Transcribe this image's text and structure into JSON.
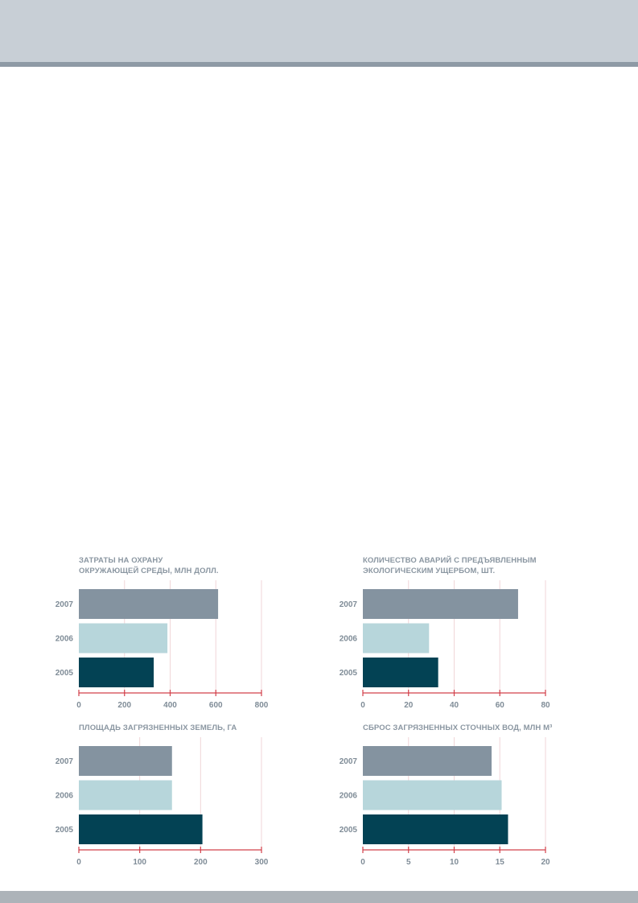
{
  "colors": {
    "year_2007": "#8493a0",
    "year_2006": "#b7d6db",
    "year_2005": "#034254",
    "axis": "#d2404a",
    "grid": "#f0d6d8"
  },
  "chart_data": [
    {
      "type": "bar",
      "orientation": "horizontal",
      "title_lines": [
        "ЗАТРАТЫ НА ОХРАНУ",
        "ОКРУЖАЮЩЕЙ СРЕДЫ, МЛН ДОЛЛ."
      ],
      "categories": [
        "2007",
        "2006",
        "2005"
      ],
      "values": [
        610,
        388,
        328
      ],
      "xlim": [
        0,
        800
      ],
      "xticks": [
        "0",
        "200",
        "400",
        "600",
        "800"
      ],
      "grid": true
    },
    {
      "type": "bar",
      "orientation": "horizontal",
      "title_lines": [
        "КОЛИЧЕСТВО АВАРИЙ С ПРЕДЪЯВЛЕННЫМ",
        "ЭКОЛОГИЧЕСКИМ УЩЕРБОМ, ШТ."
      ],
      "categories": [
        "2007",
        "2006",
        "2005"
      ],
      "values": [
        68,
        29,
        33
      ],
      "xlim": [
        0,
        80
      ],
      "xticks": [
        "0",
        "20",
        "40",
        "60",
        "80"
      ],
      "grid": true
    },
    {
      "type": "bar",
      "orientation": "horizontal",
      "title_lines": [
        "ПЛОЩАДЬ ЗАГРЯЗНЕННЫХ ЗЕМЕЛЬ, ГА"
      ],
      "categories": [
        "2007",
        "2006",
        "2005"
      ],
      "values": [
        153,
        153,
        203
      ],
      "xlim": [
        0,
        300
      ],
      "xticks": [
        "0",
        "100",
        "200",
        "300"
      ],
      "grid": true
    },
    {
      "type": "bar",
      "orientation": "horizontal",
      "title_lines": [
        "СБРОС ЗАГРЯЗНЕННЫХ СТОЧНЫХ ВОД, МЛН М³"
      ],
      "categories": [
        "2007",
        "2006",
        "2005"
      ],
      "values": [
        14.1,
        15.2,
        15.9
      ],
      "xlim": [
        0,
        20
      ],
      "xticks": [
        "0",
        "5",
        "10",
        "15",
        "20"
      ],
      "grid": true
    }
  ]
}
